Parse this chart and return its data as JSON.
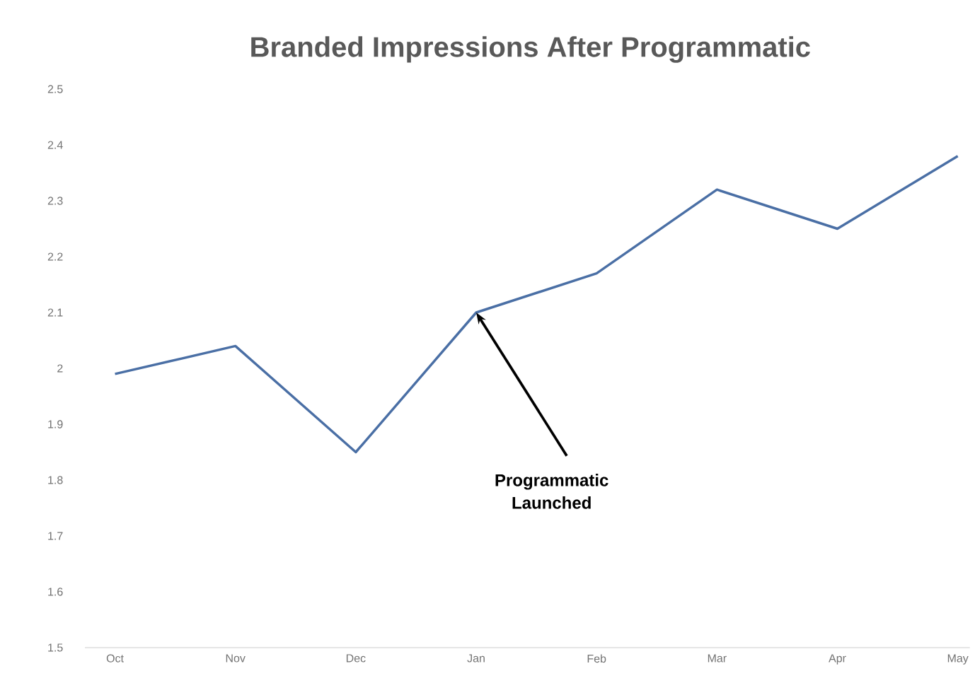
{
  "chart_data": {
    "type": "line",
    "title": "Branded Impressions After Programmatic",
    "categories": [
      "Oct",
      "Nov",
      "Dec",
      "Jan",
      "Feb",
      "Mar",
      "Apr",
      "May"
    ],
    "values": [
      1.99,
      2.04,
      1.85,
      2.1,
      2.17,
      2.32,
      2.25,
      2.38
    ],
    "color": "#4a6fa5",
    "ylim": [
      1.5,
      2.5
    ],
    "yticks": [
      1.5,
      1.6,
      1.7,
      1.8,
      1.9,
      2,
      2.1,
      2.2,
      2.3,
      2.4,
      2.5
    ],
    "grid": false,
    "marker": "none",
    "line_style": "solid",
    "annotations": [
      {
        "text": "Programmatic Launched",
        "x": "Jan",
        "y": 2.1
      }
    ]
  }
}
